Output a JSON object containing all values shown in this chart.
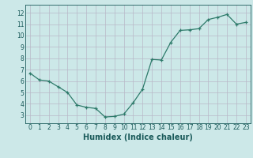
{
  "x": [
    0,
    1,
    2,
    3,
    4,
    5,
    6,
    7,
    8,
    9,
    10,
    11,
    12,
    13,
    14,
    15,
    16,
    17,
    18,
    19,
    20,
    21,
    22,
    23
  ],
  "y": [
    6.7,
    6.1,
    6.0,
    5.5,
    5.0,
    3.9,
    3.7,
    3.6,
    2.85,
    2.9,
    3.1,
    4.1,
    5.3,
    7.9,
    7.85,
    9.4,
    10.45,
    10.5,
    10.6,
    11.4,
    11.6,
    11.85,
    11.0,
    11.15
  ],
  "xlabel": "Humidex (Indice chaleur)",
  "ylabel": "",
  "xlim": [
    -0.5,
    23.5
  ],
  "ylim": [
    2.3,
    12.7
  ],
  "yticks": [
    3,
    4,
    5,
    6,
    7,
    8,
    9,
    10,
    11,
    12
  ],
  "xticks": [
    0,
    1,
    2,
    3,
    4,
    5,
    6,
    7,
    8,
    9,
    10,
    11,
    12,
    13,
    14,
    15,
    16,
    17,
    18,
    19,
    20,
    21,
    22,
    23
  ],
  "line_color": "#2d7a6a",
  "bg_color": "#cce8e8",
  "grid_major_color": "#b8b8c8",
  "grid_minor_color": "#d4d4e0",
  "text_color": "#1a5a5a",
  "tick_fontsize": 5.5,
  "xlabel_fontsize": 7
}
